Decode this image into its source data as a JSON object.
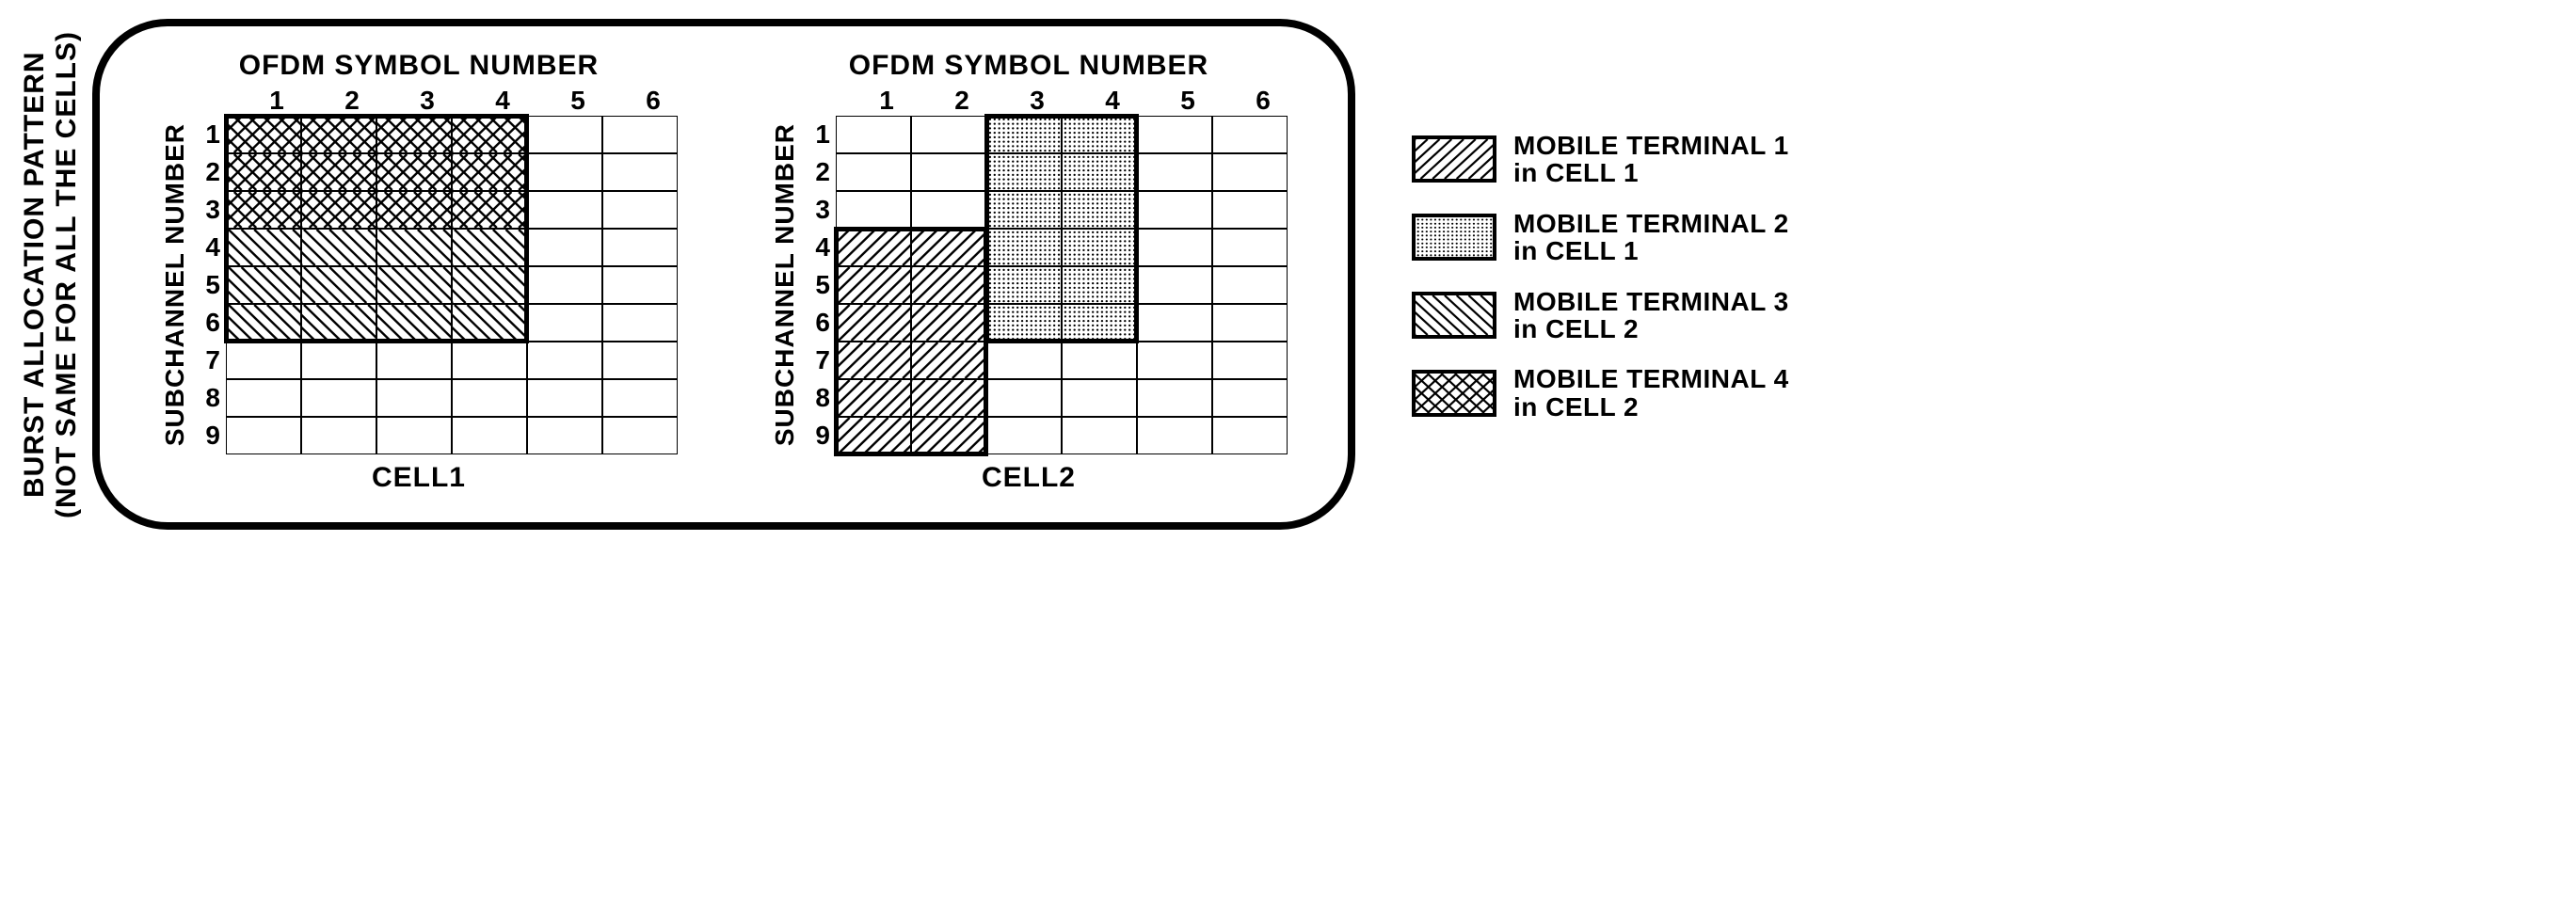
{
  "sideLabel": "BURST ALLOCATION PATTERN\n(NOT SAME FOR ALL THE CELLS)",
  "grid": {
    "cols": 6,
    "rows": 9,
    "cellW": 80,
    "cellH": 40,
    "xTitle": "OFDM SYMBOL NUMBER",
    "yTitle": "SUBCHANNEL NUMBER",
    "xLabels": [
      "1",
      "2",
      "3",
      "4",
      "5",
      "6"
    ],
    "yLabels": [
      "1",
      "2",
      "3",
      "4",
      "5",
      "6",
      "7",
      "8",
      "9"
    ]
  },
  "cells": [
    {
      "name": "CELL1",
      "regions": [
        {
          "pattern": "crosshatch",
          "rowStart": 1,
          "rowEnd": 3,
          "colStart": 1,
          "colEnd": 4
        },
        {
          "pattern": "backslash",
          "rowStart": 4,
          "rowEnd": 6,
          "colStart": 1,
          "colEnd": 4
        }
      ],
      "outlines": [
        {
          "rowStart": 1,
          "rowEnd": 6,
          "colStart": 1,
          "colEnd": 4
        }
      ]
    },
    {
      "name": "CELL2",
      "regions": [
        {
          "pattern": "dots",
          "rowStart": 1,
          "rowEnd": 6,
          "colStart": 3,
          "colEnd": 4
        },
        {
          "pattern": "slash",
          "rowStart": 4,
          "rowEnd": 9,
          "colStart": 1,
          "colEnd": 2
        }
      ],
      "outlines": [
        {
          "rowStart": 1,
          "rowEnd": 6,
          "colStart": 3,
          "colEnd": 4
        },
        {
          "rowStart": 4,
          "rowEnd": 9,
          "colStart": 1,
          "colEnd": 2
        }
      ]
    }
  ],
  "legend": [
    {
      "pattern": "slash",
      "label": "MOBILE TERMINAL 1\nin CELL 1"
    },
    {
      "pattern": "dots",
      "label": "MOBILE TERMINAL 2\nin CELL 1"
    },
    {
      "pattern": "backslash",
      "label": "MOBILE TERMINAL 3\nin CELL 2"
    },
    {
      "pattern": "crosshatch",
      "label": "MOBILE TERMINAL 4\nin CELL 2"
    }
  ],
  "colors": {
    "line": "#000000",
    "bg": "#ffffff"
  }
}
